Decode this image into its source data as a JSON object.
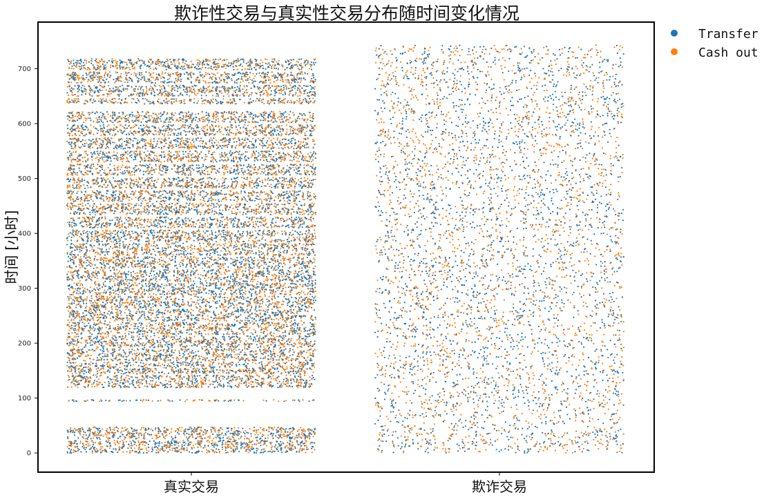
{
  "chart_data": {
    "type": "scatter",
    "title": "欺诈性交易与真实性交易分布随时间变化情况",
    "xlabel": "",
    "ylabel": "时间 [小时]",
    "categories": [
      "真实交易",
      "欺诈交易"
    ],
    "ylim": [
      -35,
      785
    ],
    "yticks": [
      0,
      100,
      200,
      300,
      400,
      500,
      600,
      700
    ],
    "grid": false,
    "legend_position": "outside-top-right",
    "series": [
      {
        "name": "Transfer",
        "color": "#1f77b4"
      },
      {
        "name": "Cash out",
        "color": "#ff7f0e"
      }
    ],
    "genuine_time_bands": [
      [
        0,
        23
      ],
      [
        25,
        47
      ],
      [
        94,
        97
      ],
      [
        119,
        142
      ],
      [
        144,
        166
      ],
      [
        168,
        190
      ],
      [
        192,
        214
      ],
      [
        216,
        238
      ],
      [
        240,
        262
      ],
      [
        264,
        286
      ],
      [
        288,
        310
      ],
      [
        312,
        334
      ],
      [
        336,
        358
      ],
      [
        360,
        382
      ],
      [
        384,
        406
      ],
      [
        410,
        430
      ],
      [
        434,
        455
      ],
      [
        458,
        478
      ],
      [
        482,
        502
      ],
      [
        506,
        526
      ],
      [
        530,
        550
      ],
      [
        554,
        574
      ],
      [
        578,
        598
      ],
      [
        602,
        622
      ],
      [
        636,
        646
      ],
      [
        650,
        670
      ],
      [
        674,
        694
      ],
      [
        698,
        718
      ]
    ],
    "fraud_time_range": [
      0,
      743
    ],
    "fraud_distribution": "uniform"
  }
}
